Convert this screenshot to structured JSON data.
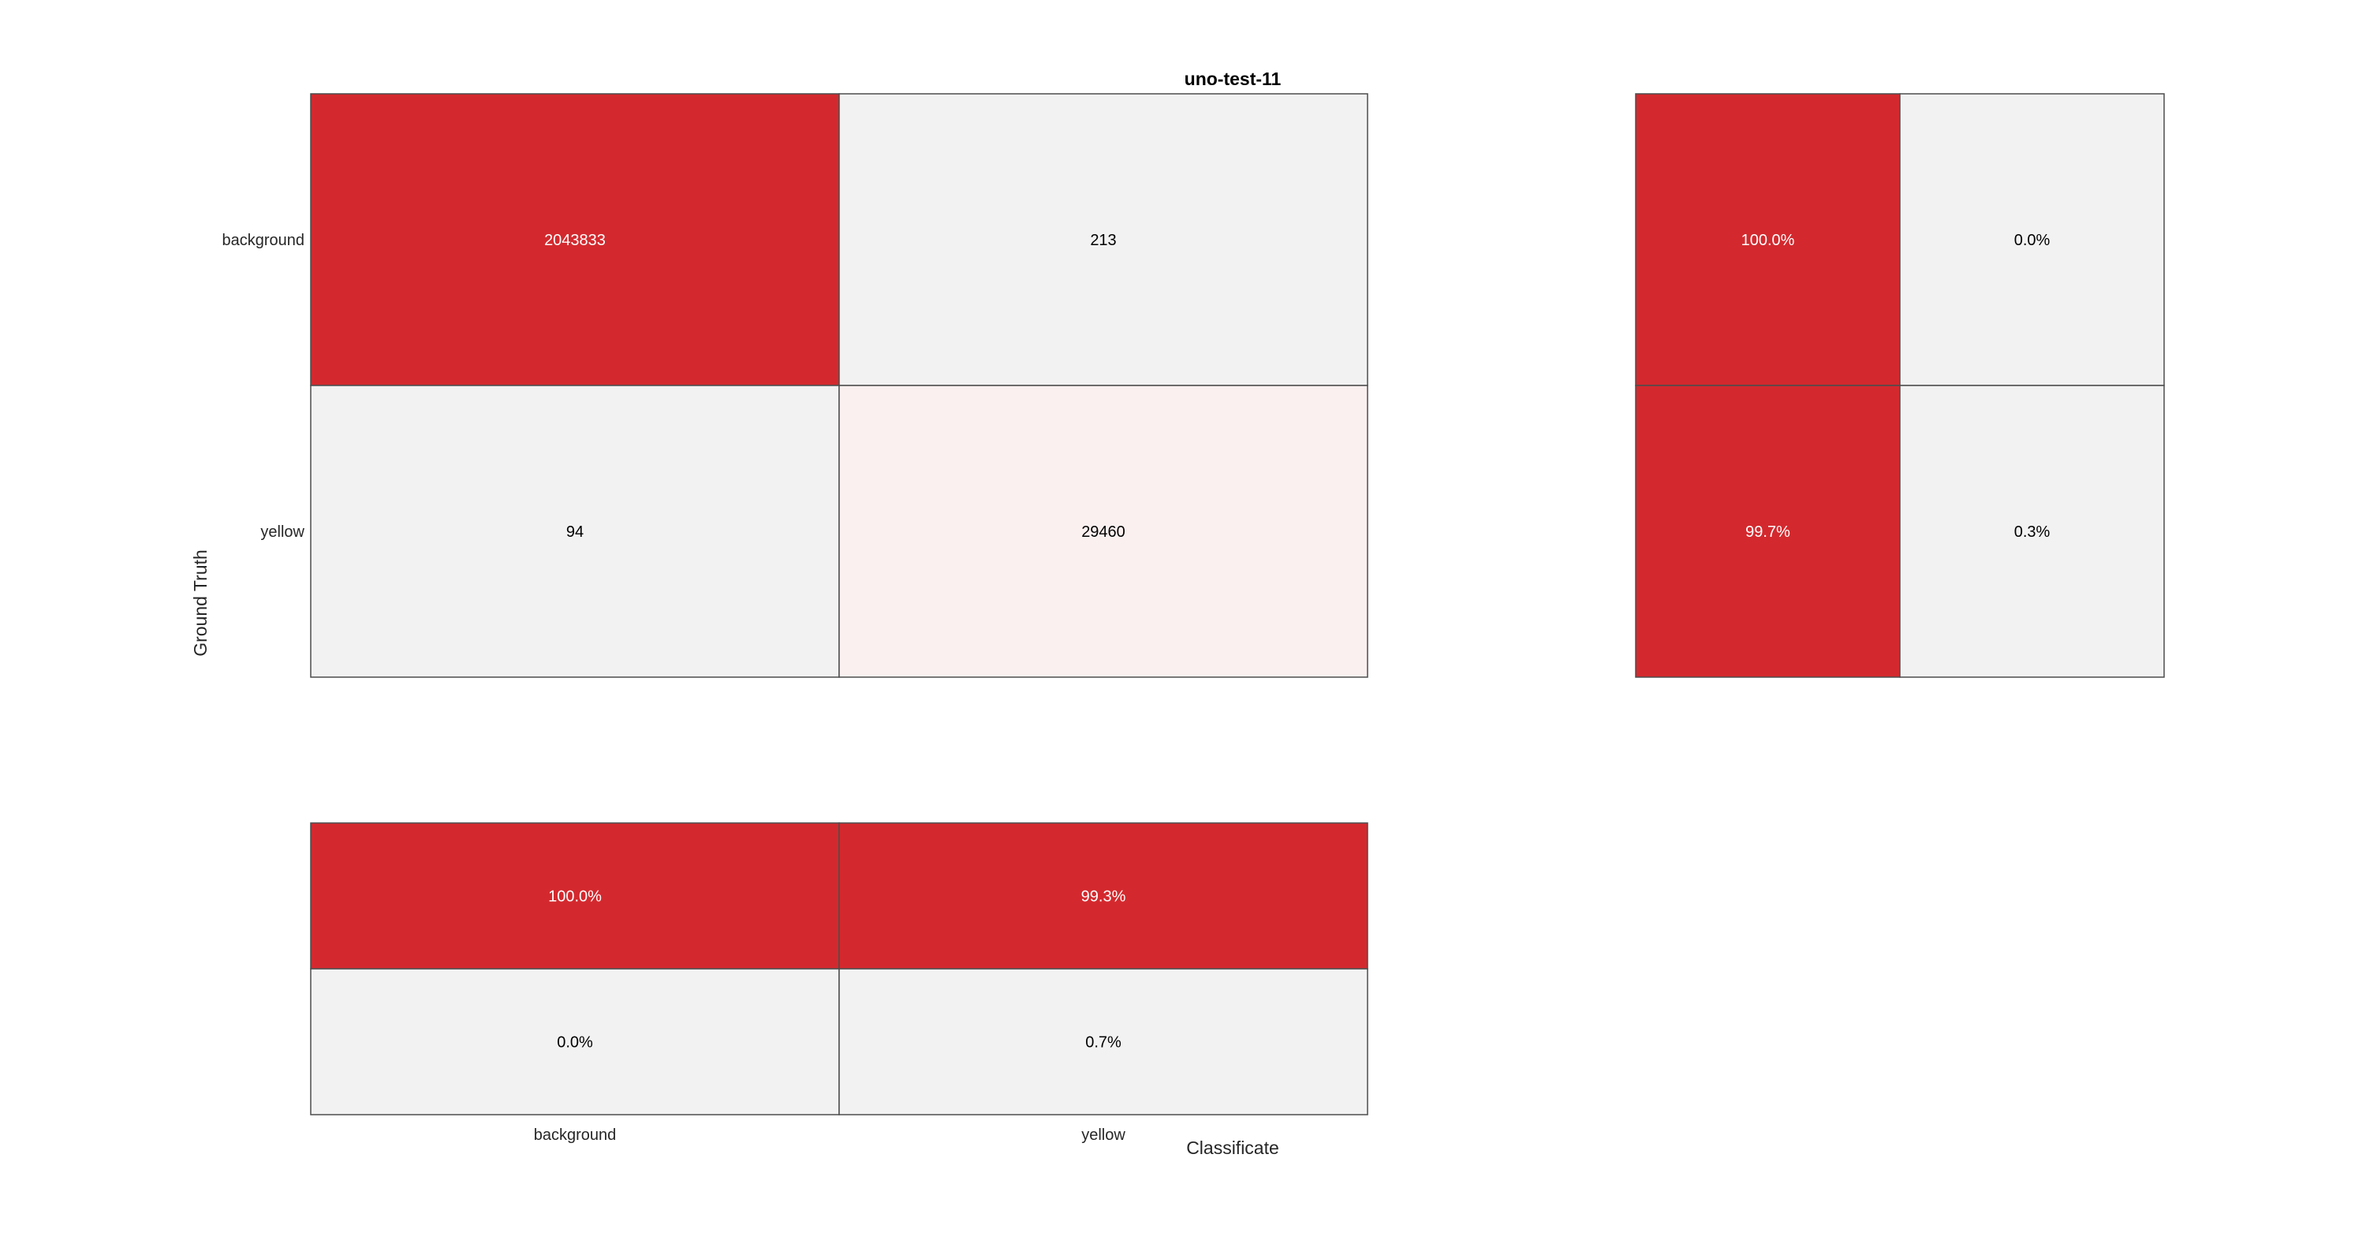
{
  "chart_data": [
    {
      "type": "heatmap",
      "name": "confusion-matrix",
      "title": "uno-test-11",
      "xlabel": "Classificate",
      "ylabel": "Ground Truth",
      "rows": [
        "background",
        "yellow"
      ],
      "columns": [
        "background",
        "yellow"
      ],
      "values": [
        [
          2043833,
          213
        ],
        [
          94,
          29460
        ]
      ],
      "cell_colors": [
        [
          "#d3292e",
          "#f2f2f2"
        ],
        [
          "#f2f2f2",
          "#fbf0f0"
        ]
      ],
      "cell_text_colors": [
        [
          "#ffffff",
          "#000000"
        ],
        [
          "#000000",
          "#000000"
        ]
      ]
    },
    {
      "type": "heatmap",
      "name": "row-summary",
      "rows": [
        "background",
        "yellow"
      ],
      "values": [
        [
          "100.0%",
          "0.0%"
        ],
        [
          "99.7%",
          "0.3%"
        ]
      ],
      "cell_colors": [
        [
          "#d3292e",
          "#f2f2f2"
        ],
        [
          "#d3292e",
          "#f2f2f2"
        ]
      ],
      "cell_text_colors": [
        [
          "#ffffff",
          "#000000"
        ],
        [
          "#ffffff",
          "#000000"
        ]
      ]
    },
    {
      "type": "heatmap",
      "name": "column-summary",
      "columns": [
        "background",
        "yellow"
      ],
      "values": [
        [
          "100.0%",
          "99.3%"
        ],
        [
          "0.0%",
          "0.7%"
        ]
      ],
      "cell_colors": [
        [
          "#d3292e",
          "#d3292e"
        ],
        [
          "#f2f2f2",
          "#f2f2f2"
        ]
      ],
      "cell_text_colors": [
        [
          "#ffffff",
          "#ffffff"
        ],
        [
          "#000000",
          "#000000"
        ]
      ]
    }
  ],
  "colors": {
    "accent": "#d3292e",
    "neutral": "#f2f2f2",
    "border": "#4d4d4d"
  }
}
